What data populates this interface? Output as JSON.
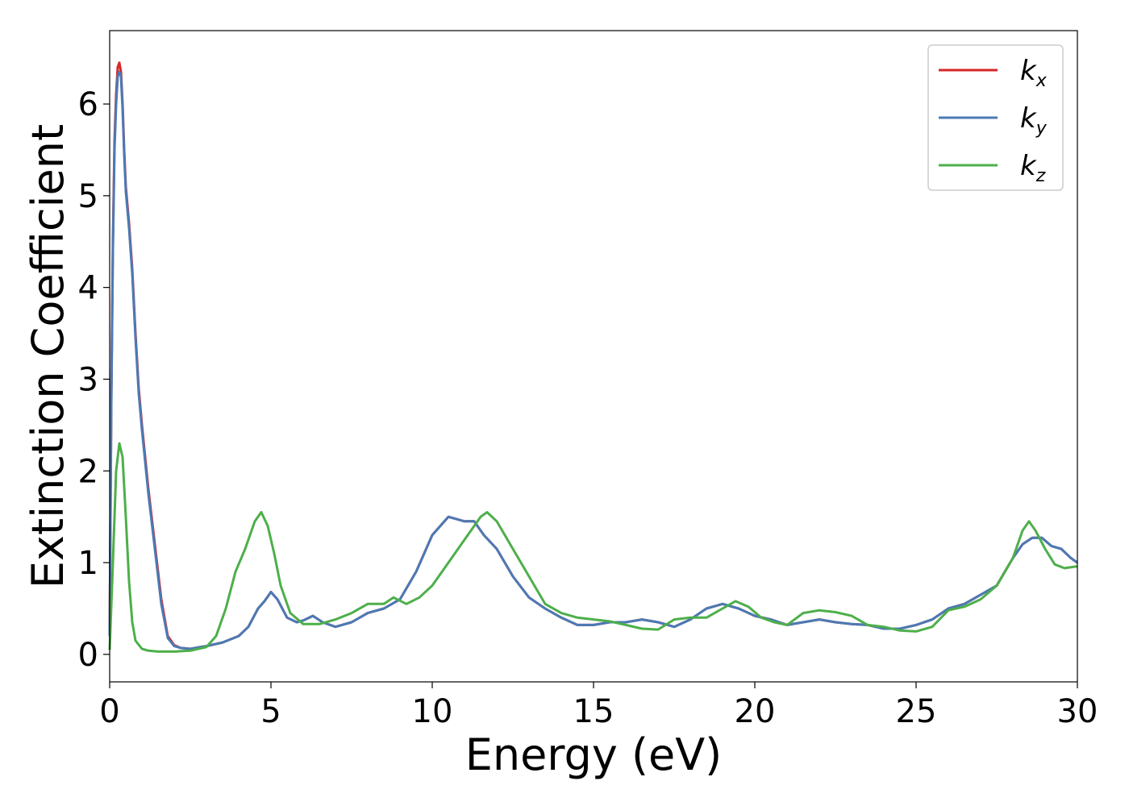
{
  "chart_data": {
    "type": "line",
    "title": "",
    "xlabel": "Energy (eV)",
    "ylabel": "Extinction Coefficient",
    "xlim": [
      0,
      30
    ],
    "ylim": [
      -0.3,
      6.8
    ],
    "xticks": [
      0,
      5,
      10,
      15,
      20,
      25,
      30
    ],
    "yticks": [
      0,
      1,
      2,
      3,
      4,
      5,
      6
    ],
    "grid": false,
    "legend_position": "top-right",
    "series": [
      {
        "name": "k_x",
        "label_main": "k",
        "label_sub": "x",
        "color": "#d62728",
        "x": [
          0,
          0.05,
          0.1,
          0.15,
          0.2,
          0.25,
          0.3,
          0.35,
          0.4,
          0.45,
          0.5,
          0.6,
          0.7,
          0.8,
          0.9,
          1.0,
          1.2,
          1.4,
          1.6,
          1.8,
          2.0,
          2.2,
          2.5,
          2.8,
          3.0,
          3.5,
          4.0,
          4.3,
          4.6,
          4.8,
          5.0,
          5.2,
          5.5,
          5.8,
          6.0,
          6.3,
          6.6,
          7.0,
          7.5,
          8.0,
          8.5,
          9.0,
          9.5,
          10.0,
          10.5,
          11.0,
          11.3,
          11.6,
          12.0,
          12.5,
          13.0,
          13.5,
          14.0,
          14.5,
          15.0,
          15.5,
          16.0,
          16.5,
          17.0,
          17.5,
          18.0,
          18.5,
          19.0,
          19.5,
          20.0,
          20.5,
          21.0,
          21.5,
          22.0,
          22.5,
          23.0,
          23.5,
          24.0,
          24.5,
          25.0,
          25.5,
          26.0,
          26.5,
          27.0,
          27.5,
          28.0,
          28.3,
          28.6,
          28.9,
          29.2,
          29.5,
          29.8,
          30.0
        ],
        "y": [
          0.2,
          2.8,
          4.5,
          5.6,
          6.1,
          6.4,
          6.45,
          6.35,
          6.0,
          5.5,
          5.1,
          4.7,
          4.2,
          3.5,
          2.9,
          2.5,
          1.8,
          1.2,
          0.6,
          0.2,
          0.1,
          0.07,
          0.06,
          0.08,
          0.09,
          0.13,
          0.2,
          0.3,
          0.5,
          0.58,
          0.68,
          0.6,
          0.4,
          0.35,
          0.37,
          0.42,
          0.35,
          0.3,
          0.35,
          0.45,
          0.5,
          0.6,
          0.9,
          1.3,
          1.5,
          1.45,
          1.45,
          1.3,
          1.15,
          0.85,
          0.62,
          0.5,
          0.4,
          0.32,
          0.32,
          0.35,
          0.35,
          0.38,
          0.35,
          0.3,
          0.38,
          0.5,
          0.55,
          0.5,
          0.42,
          0.38,
          0.32,
          0.35,
          0.38,
          0.35,
          0.33,
          0.32,
          0.28,
          0.28,
          0.32,
          0.38,
          0.5,
          0.55,
          0.65,
          0.75,
          1.05,
          1.2,
          1.27,
          1.27,
          1.18,
          1.15,
          1.05,
          1.0
        ]
      },
      {
        "name": "k_y",
        "label_main": "k",
        "label_sub": "y",
        "color": "#4a7ab5",
        "x": [
          0,
          0.05,
          0.1,
          0.15,
          0.2,
          0.25,
          0.3,
          0.35,
          0.4,
          0.45,
          0.5,
          0.6,
          0.7,
          0.8,
          0.9,
          1.0,
          1.2,
          1.4,
          1.6,
          1.8,
          2.0,
          2.2,
          2.5,
          2.8,
          3.0,
          3.5,
          4.0,
          4.3,
          4.6,
          4.8,
          5.0,
          5.2,
          5.5,
          5.8,
          6.0,
          6.3,
          6.6,
          7.0,
          7.5,
          8.0,
          8.5,
          9.0,
          9.5,
          10.0,
          10.5,
          11.0,
          11.3,
          11.6,
          12.0,
          12.5,
          13.0,
          13.5,
          14.0,
          14.5,
          15.0,
          15.5,
          16.0,
          16.5,
          17.0,
          17.5,
          18.0,
          18.5,
          19.0,
          19.5,
          20.0,
          20.5,
          21.0,
          21.5,
          22.0,
          22.5,
          23.0,
          23.5,
          24.0,
          24.5,
          25.0,
          25.5,
          26.0,
          26.5,
          27.0,
          27.5,
          28.0,
          28.3,
          28.6,
          28.9,
          29.2,
          29.5,
          29.8,
          30.0
        ],
        "y": [
          0.2,
          2.7,
          4.4,
          5.5,
          6.0,
          6.3,
          6.35,
          6.3,
          5.95,
          5.45,
          5.05,
          4.65,
          4.15,
          3.45,
          2.85,
          2.45,
          1.75,
          1.15,
          0.55,
          0.18,
          0.09,
          0.07,
          0.06,
          0.08,
          0.09,
          0.13,
          0.2,
          0.3,
          0.5,
          0.58,
          0.68,
          0.6,
          0.4,
          0.35,
          0.37,
          0.42,
          0.35,
          0.3,
          0.35,
          0.45,
          0.5,
          0.6,
          0.9,
          1.3,
          1.5,
          1.45,
          1.45,
          1.3,
          1.15,
          0.85,
          0.62,
          0.5,
          0.4,
          0.32,
          0.32,
          0.35,
          0.35,
          0.38,
          0.35,
          0.3,
          0.38,
          0.5,
          0.55,
          0.5,
          0.42,
          0.38,
          0.32,
          0.35,
          0.38,
          0.35,
          0.33,
          0.32,
          0.28,
          0.28,
          0.32,
          0.38,
          0.5,
          0.55,
          0.65,
          0.75,
          1.05,
          1.2,
          1.27,
          1.27,
          1.18,
          1.15,
          1.05,
          1.0
        ]
      },
      {
        "name": "k_z",
        "label_main": "k",
        "label_sub": "z",
        "color": "#4daf4a",
        "x": [
          0,
          0.1,
          0.2,
          0.3,
          0.4,
          0.5,
          0.6,
          0.7,
          0.8,
          1.0,
          1.2,
          1.5,
          2.0,
          2.5,
          3.0,
          3.3,
          3.6,
          3.9,
          4.2,
          4.5,
          4.7,
          4.9,
          5.1,
          5.3,
          5.6,
          6.0,
          6.5,
          7.0,
          7.5,
          8.0,
          8.5,
          8.8,
          9.2,
          9.6,
          10.0,
          10.5,
          11.0,
          11.5,
          11.7,
          12.0,
          12.5,
          13.0,
          13.5,
          14.0,
          14.5,
          15.0,
          15.5,
          16.0,
          16.5,
          17.0,
          17.5,
          18.0,
          18.5,
          19.0,
          19.4,
          19.8,
          20.2,
          20.6,
          21.0,
          21.5,
          22.0,
          22.5,
          23.0,
          23.5,
          24.0,
          24.5,
          25.0,
          25.5,
          26.0,
          26.5,
          27.0,
          27.5,
          28.0,
          28.3,
          28.5,
          28.7,
          29.0,
          29.3,
          29.6,
          30.0
        ],
        "y": [
          0.05,
          1.0,
          2.0,
          2.3,
          2.15,
          1.5,
          0.8,
          0.35,
          0.15,
          0.06,
          0.04,
          0.03,
          0.03,
          0.04,
          0.08,
          0.2,
          0.5,
          0.9,
          1.15,
          1.45,
          1.55,
          1.4,
          1.1,
          0.75,
          0.45,
          0.33,
          0.33,
          0.38,
          0.45,
          0.55,
          0.55,
          0.62,
          0.55,
          0.62,
          0.75,
          1.0,
          1.25,
          1.5,
          1.55,
          1.45,
          1.15,
          0.85,
          0.55,
          0.45,
          0.4,
          0.38,
          0.36,
          0.32,
          0.28,
          0.27,
          0.38,
          0.4,
          0.4,
          0.5,
          0.58,
          0.52,
          0.4,
          0.35,
          0.32,
          0.45,
          0.48,
          0.46,
          0.42,
          0.32,
          0.3,
          0.26,
          0.25,
          0.3,
          0.48,
          0.52,
          0.6,
          0.75,
          1.05,
          1.35,
          1.45,
          1.35,
          1.15,
          0.98,
          0.94,
          0.96
        ]
      }
    ]
  }
}
